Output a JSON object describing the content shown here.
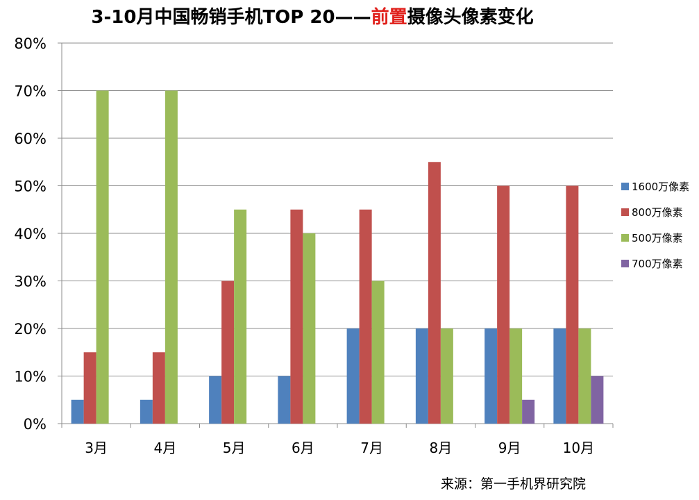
{
  "title": {
    "part1": "3-10月中国畅销手机TOP 20——",
    "highlight": "前置",
    "part2": "摄像头像素变化",
    "highlight_color": "#e0201b"
  },
  "source": "来源：第一手机界研究院",
  "chart_data": {
    "type": "bar",
    "categories": [
      "3月",
      "4月",
      "5月",
      "6月",
      "7月",
      "8月",
      "9月",
      "10月"
    ],
    "series": [
      {
        "name": "1600万像素",
        "color": "#4f81bd",
        "values": [
          5,
          5,
          10,
          10,
          20,
          20,
          20,
          20
        ]
      },
      {
        "name": "800万像素",
        "color": "#c0504d",
        "values": [
          15,
          15,
          30,
          45,
          45,
          55,
          50,
          50
        ]
      },
      {
        "name": "500万像素",
        "color": "#9bbb59",
        "values": [
          70,
          70,
          45,
          40,
          30,
          20,
          20,
          20
        ]
      },
      {
        "name": "700万像素",
        "color": "#8064a2",
        "values": [
          0,
          0,
          0,
          0,
          0,
          0,
          5,
          10
        ]
      }
    ],
    "yticks": [
      "0%",
      "10%",
      "20%",
      "30%",
      "40%",
      "50%",
      "60%",
      "70%",
      "80%"
    ],
    "ylim": [
      0,
      80
    ],
    "grid": true,
    "legend_position": "right"
  }
}
